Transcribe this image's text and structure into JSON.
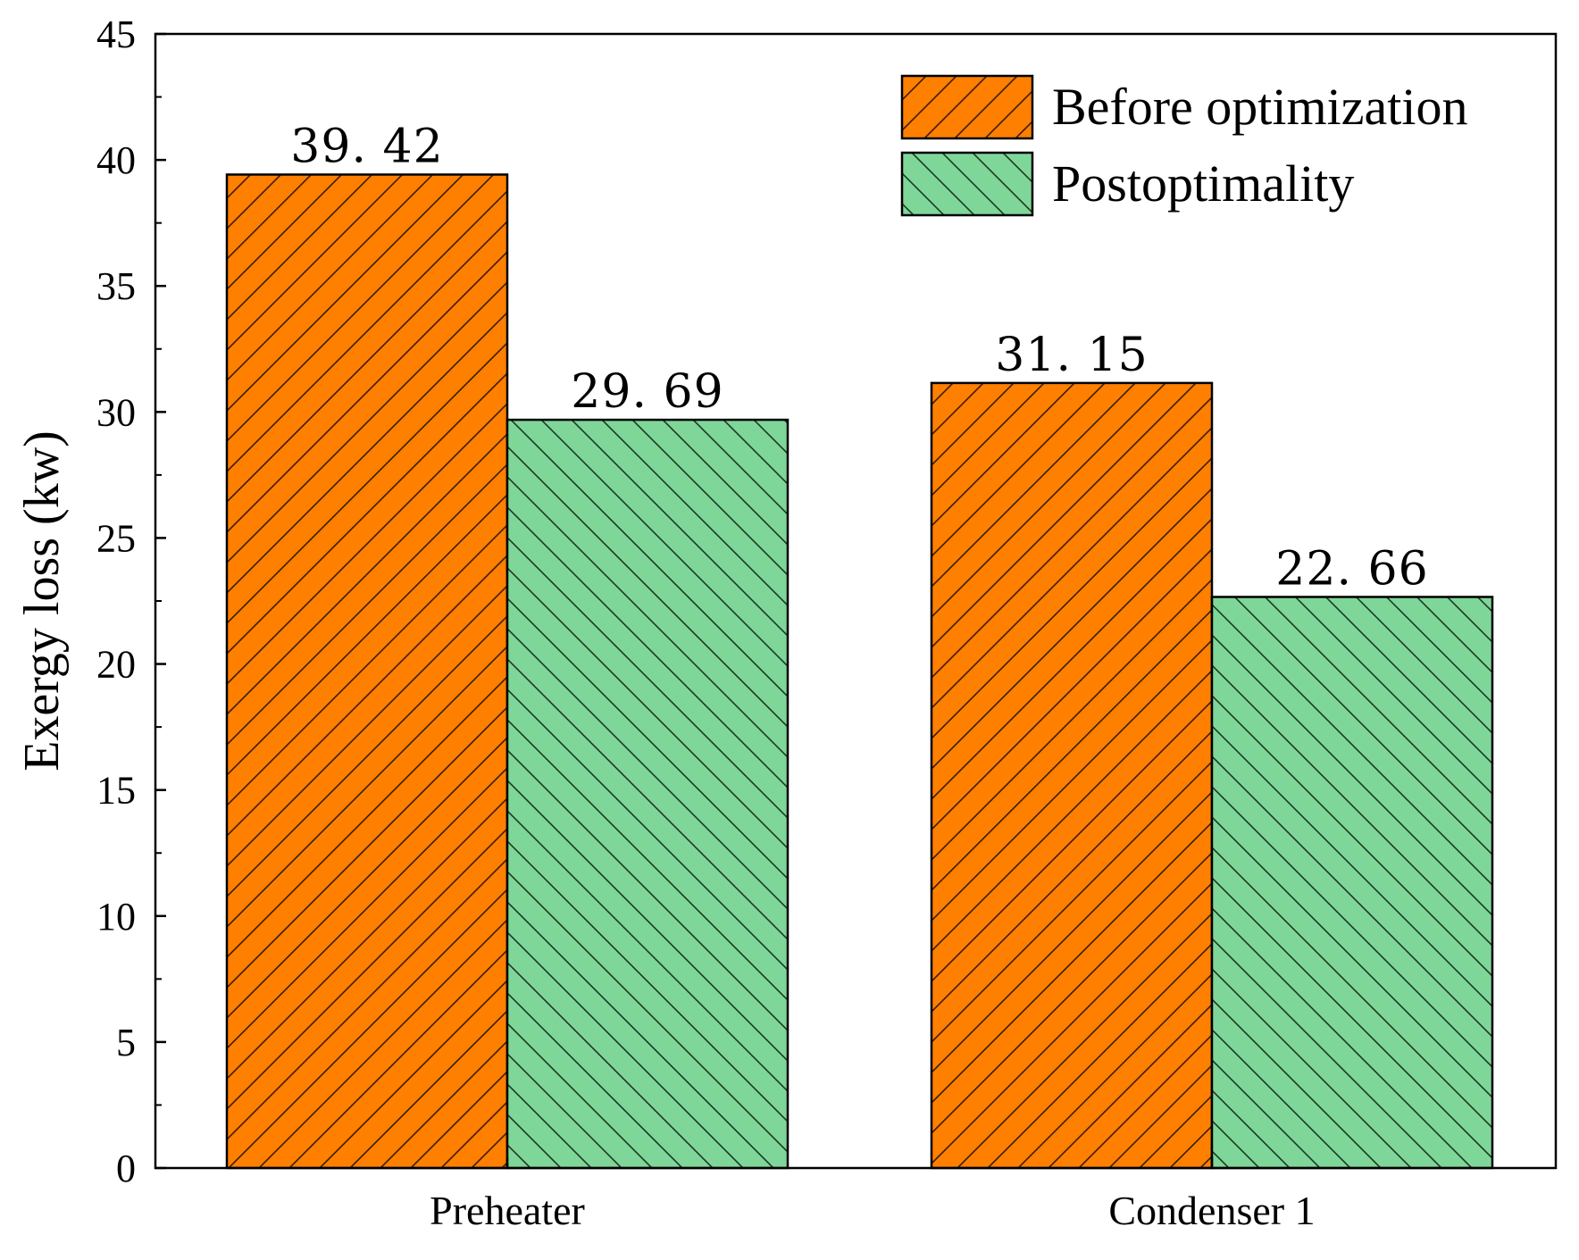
{
  "chart_data": {
    "type": "bar",
    "title": "",
    "xlabel": "",
    "ylabel": "Exergy loss (kw)",
    "ylim": [
      0,
      45
    ],
    "yticks": [
      0,
      5,
      10,
      15,
      20,
      25,
      30,
      35,
      40,
      45
    ],
    "categories": [
      "Preheater",
      "Condenser 1"
    ],
    "series": [
      {
        "name": "Before optimization",
        "values": [
          39.42,
          31.15
        ],
        "labels": [
          "39. 42",
          "31. 15"
        ],
        "color": "#FF7F00",
        "pattern": "forward-hatch"
      },
      {
        "name": "Postoptimality",
        "values": [
          29.69,
          22.66
        ],
        "labels": [
          "29. 69",
          "22. 66"
        ],
        "color": "#7FD699",
        "pattern": "back-hatch"
      }
    ],
    "legend_position": "top-right",
    "grid": false
  }
}
